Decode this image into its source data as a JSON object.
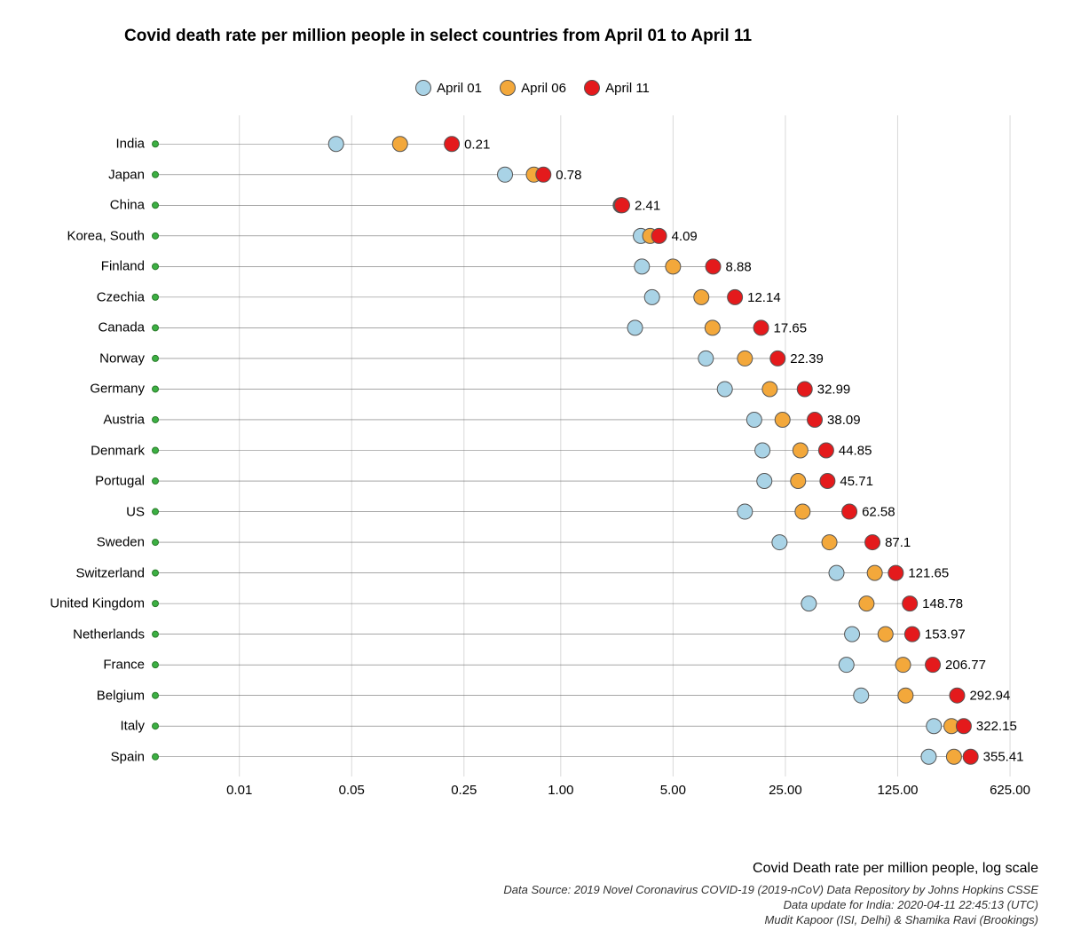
{
  "title": "Covid death rate per million people in select countries from April 01 to April 11",
  "legend": {
    "april01": "April 01",
    "april06": "April 06",
    "april11": "April 11"
  },
  "axis": {
    "x_title": "Covid Death rate per million people, log scale",
    "ticks": [
      "0.01",
      "0.05",
      "0.25",
      "1.00",
      "5.00",
      "25.00",
      "125.00",
      "625.00"
    ],
    "tick_values": [
      0.01,
      0.05,
      0.25,
      1.0,
      5.0,
      25.0,
      125.0,
      625.0
    ]
  },
  "credits": {
    "line1": "Data Source: 2019 Novel Coronavirus COVID-19 (2019-nCoV) Data Repository by Johns Hopkins CSSE",
    "line2": "Data update for India: 2020-04-11 22:45:13 (UTC)",
    "line3": "Mudit Kapoor (ISI, Delhi) & Shamika Ravi (Brookings)"
  },
  "chart": {
    "type": "lollipop-log",
    "xmin_log10": -2.523,
    "xmax_log10": 3.0,
    "marker_radius": 8.5,
    "marker_stroke": "#555555",
    "origin_marker_color": "#3cb043",
    "origin_marker_radius": 3.5,
    "origin_value": 0.003,
    "line_color": "#707070",
    "line_width": 0.6,
    "grid_color": "#d9d9d9",
    "grid_width": 1,
    "background": "#ffffff",
    "label_fontsize": 15,
    "value_label_fontsize": 15,
    "colors": {
      "april01": "#a9d3e6",
      "april06": "#f3a83b",
      "april11": "#e41a1c"
    },
    "countries": [
      {
        "name": "India",
        "april01": 0.04,
        "april06": 0.1,
        "april11": 0.21,
        "label": "0.21"
      },
      {
        "name": "Japan",
        "april01": 0.45,
        "april06": 0.68,
        "april11": 0.78,
        "label": "0.78"
      },
      {
        "name": "China",
        "april01": 2.36,
        "april06": 2.38,
        "april11": 2.41,
        "label": "2.41"
      },
      {
        "name": "Korea, South",
        "april01": 3.15,
        "april06": 3.6,
        "april11": 4.09,
        "label": "4.09"
      },
      {
        "name": "Finland",
        "april01": 3.2,
        "april06": 5.0,
        "april11": 8.88,
        "label": "8.88"
      },
      {
        "name": "Czechia",
        "april01": 3.7,
        "april06": 7.5,
        "april11": 12.14,
        "label": "12.14"
      },
      {
        "name": "Canada",
        "april01": 2.9,
        "april06": 8.8,
        "april11": 17.65,
        "label": "17.65"
      },
      {
        "name": "Norway",
        "april01": 8.0,
        "april06": 14.0,
        "april11": 22.39,
        "label": "22.39"
      },
      {
        "name": "Germany",
        "april01": 10.5,
        "april06": 20.0,
        "april11": 32.99,
        "label": "32.99"
      },
      {
        "name": "Austria",
        "april01": 16.0,
        "april06": 24.0,
        "april11": 38.09,
        "label": "38.09"
      },
      {
        "name": "Denmark",
        "april01": 18.0,
        "april06": 31.0,
        "april11": 44.85,
        "label": "44.85"
      },
      {
        "name": "Portugal",
        "april01": 18.5,
        "april06": 30.0,
        "april11": 45.71,
        "label": "45.71"
      },
      {
        "name": "US",
        "april01": 14.0,
        "april06": 32.0,
        "april11": 62.58,
        "label": "62.58"
      },
      {
        "name": "Sweden",
        "april01": 23.0,
        "april06": 47.0,
        "april11": 87.1,
        "label": "87.1"
      },
      {
        "name": "Switzerland",
        "april01": 52.0,
        "april06": 90.0,
        "april11": 121.65,
        "label": "121.65"
      },
      {
        "name": "United Kingdom",
        "april01": 35.0,
        "april06": 80.0,
        "april11": 148.78,
        "label": "148.78"
      },
      {
        "name": "Netherlands",
        "april01": 65.0,
        "april06": 105.0,
        "april11": 153.97,
        "label": "153.97"
      },
      {
        "name": "France",
        "april01": 60.0,
        "april06": 135.0,
        "april11": 206.77,
        "label": "206.77"
      },
      {
        "name": "Belgium",
        "april01": 74.0,
        "april06": 140.0,
        "april11": 292.94,
        "label": "292.94"
      },
      {
        "name": "Italy",
        "april01": 210.0,
        "april06": 270.0,
        "april11": 322.15,
        "label": "322.15"
      },
      {
        "name": "Spain",
        "april01": 195.0,
        "april06": 280.0,
        "april11": 355.41,
        "label": "355.41"
      }
    ]
  }
}
